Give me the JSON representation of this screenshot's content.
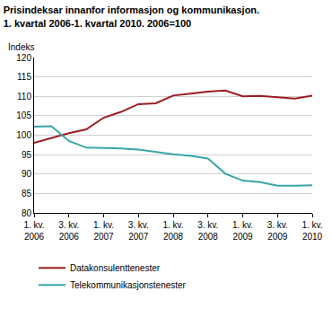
{
  "chart_data": {
    "type": "line",
    "title": "Prisindeksar innanfor informasjon og kommunikasjon.",
    "subtitle": "1. kvartal 2006-1. kvartal 2010. 2006=100",
    "y_label": "Indeks",
    "categories": [
      "1. kv.\n2006",
      null,
      "3. kv.\n2006",
      null,
      "1. kv.\n2007",
      null,
      "3. kv.\n2007",
      null,
      "1. kv.\n2008",
      null,
      "3. kv.\n2008",
      null,
      "1. kv.\n2009",
      null,
      "3. kv.\n2009",
      null,
      "1. kv.\n2010"
    ],
    "series": [
      {
        "name": "Datakonsulenttenester",
        "color": "#9b1c22",
        "values": [
          98,
          99.3,
          100.5,
          101.5,
          104.5,
          106,
          108,
          108.2,
          110.2,
          110.7,
          111.2,
          111.5,
          110,
          110.1,
          109.7,
          109.4,
          110.2
        ]
      },
      {
        "name": "Telekommunikasjonstenester",
        "color": "#3aa6a6",
        "values": [
          102.2,
          102.3,
          98.5,
          96.8,
          96.7,
          96.6,
          96.3,
          95.7,
          95.1,
          94.7,
          94,
          90.1,
          88.3,
          87.9,
          87,
          87,
          87.1
        ]
      }
    ],
    "ylim": [
      80,
      120
    ],
    "yticks": [
      80,
      85,
      90,
      95,
      100,
      105,
      110,
      115,
      120
    ],
    "grid": true,
    "legend": "bottom"
  }
}
